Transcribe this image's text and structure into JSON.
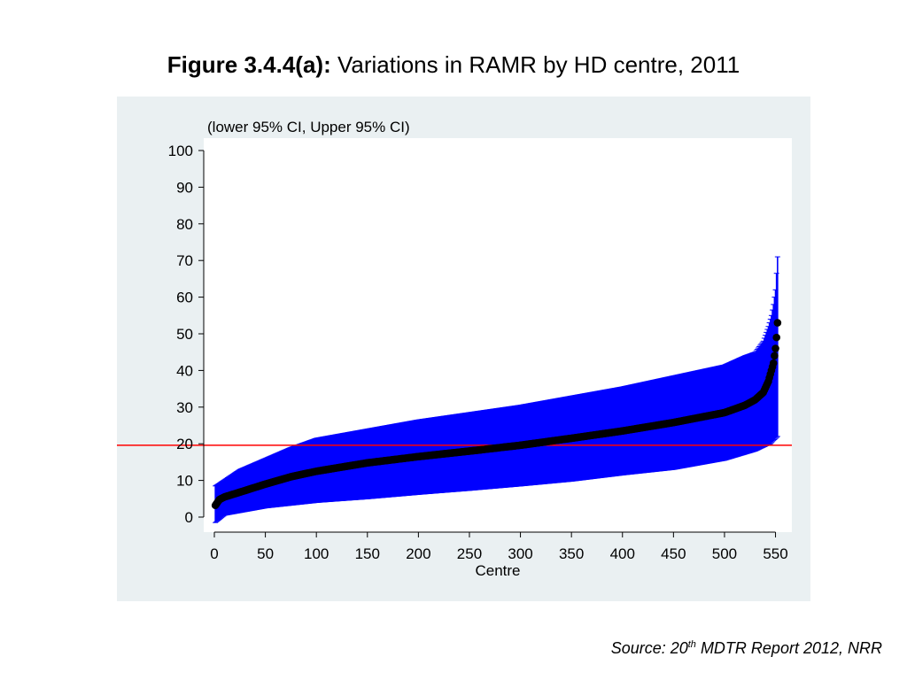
{
  "figure": {
    "title_bold": "Figure 3.4.4(a):",
    "title_rest": " Variations in RAMR by HD centre, 2011"
  },
  "source": {
    "prefix": "Source: 20",
    "sup": "th",
    "suffix": " MDTR Report 2012, NRR"
  },
  "chart_data": {
    "type": "scatter",
    "subtitle": "(lower 95% CI, Upper 95% CI)",
    "xlabel": "Centre",
    "ylabel": "",
    "xlim": [
      0,
      553
    ],
    "ylim": [
      0,
      100
    ],
    "xticks": [
      0,
      50,
      100,
      150,
      200,
      250,
      300,
      350,
      400,
      450,
      500,
      550
    ],
    "yticks": [
      0,
      10,
      20,
      30,
      40,
      50,
      60,
      70,
      80,
      90,
      100
    ],
    "n_centres": 552,
    "reference_line": {
      "y": 19.6,
      "color": "#ff0000"
    },
    "point_color": "#000000",
    "ci_color": "#0000ff",
    "grid": false,
    "series": [
      {
        "name": "RAMR",
        "profile": [
          [
            1,
            3.2
          ],
          [
            5,
            4.8
          ],
          [
            10,
            5.5
          ],
          [
            25,
            6.8
          ],
          [
            50,
            9.0
          ],
          [
            75,
            11.0
          ],
          [
            100,
            12.5
          ],
          [
            150,
            14.8
          ],
          [
            200,
            16.5
          ],
          [
            250,
            18.0
          ],
          [
            300,
            19.6
          ],
          [
            350,
            21.5
          ],
          [
            400,
            23.5
          ],
          [
            450,
            25.8
          ],
          [
            500,
            28.5
          ],
          [
            520,
            30.5
          ],
          [
            530,
            32.0
          ],
          [
            538,
            34.0
          ],
          [
            543,
            37.0
          ],
          [
            546,
            40.0
          ],
          [
            548,
            42.0
          ],
          [
            549,
            44.0
          ],
          [
            550,
            46.0
          ],
          [
            551,
            49.0
          ],
          [
            552,
            53.0
          ]
        ],
        "lower_ci_profile": [
          [
            1,
            -1.5
          ],
          [
            10,
            0.5
          ],
          [
            50,
            2.5
          ],
          [
            100,
            4.0
          ],
          [
            150,
            5.0
          ],
          [
            200,
            6.2
          ],
          [
            250,
            7.3
          ],
          [
            300,
            8.5
          ],
          [
            350,
            9.8
          ],
          [
            400,
            11.5
          ],
          [
            450,
            13.0
          ],
          [
            500,
            15.5
          ],
          [
            530,
            18.0
          ],
          [
            545,
            20.0
          ],
          [
            552,
            22.0
          ]
        ],
        "upper_ci_profile": [
          [
            1,
            8.5
          ],
          [
            25,
            13.0
          ],
          [
            50,
            16.0
          ],
          [
            75,
            19.0
          ],
          [
            100,
            21.5
          ],
          [
            150,
            24.0
          ],
          [
            200,
            26.5
          ],
          [
            250,
            28.5
          ],
          [
            300,
            30.5
          ],
          [
            350,
            33.0
          ],
          [
            400,
            35.5
          ],
          [
            450,
            38.5
          ],
          [
            500,
            41.5
          ],
          [
            520,
            44.0
          ],
          [
            530,
            45.0
          ],
          [
            538,
            48.0
          ],
          [
            543,
            52.0
          ],
          [
            546,
            55.0
          ],
          [
            548,
            58.0
          ],
          [
            550,
            62.0
          ],
          [
            552,
            71.0
          ]
        ]
      }
    ]
  }
}
